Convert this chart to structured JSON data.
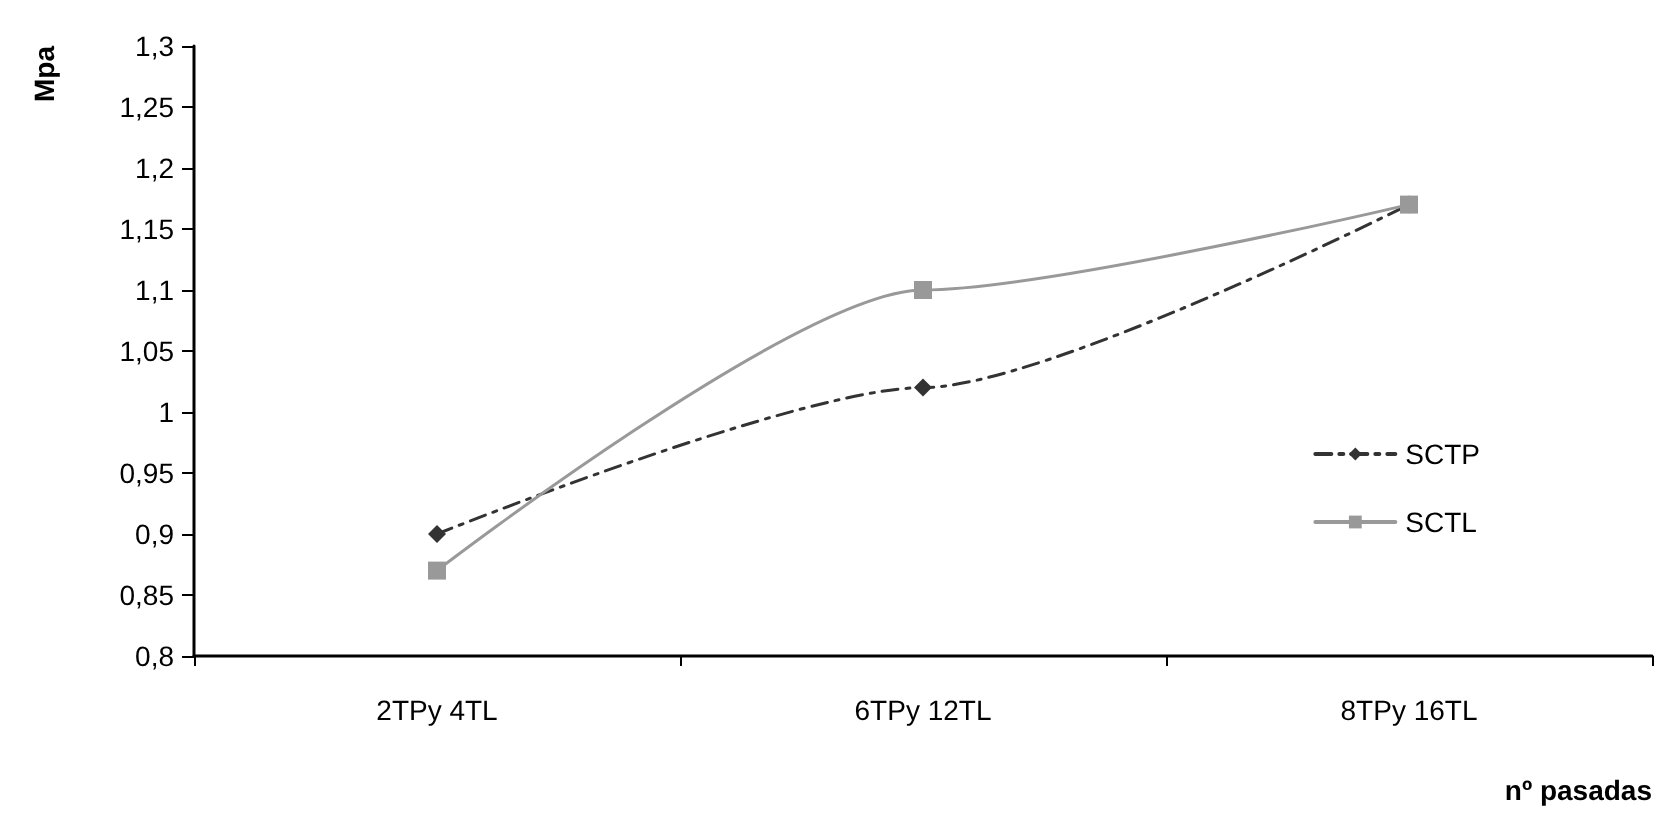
{
  "chart_data": {
    "type": "line",
    "xlabel": "nº pasadas",
    "ylabel": "Mpa",
    "categories": [
      "2TPy 4TL",
      "6TPy 12TL",
      "8TPy 16TL"
    ],
    "series": [
      {
        "name": "SCTP",
        "color": "#333333",
        "values": [
          0.9,
          1.02,
          1.17
        ],
        "marker": "diamond",
        "line_style": "dashed"
      },
      {
        "name": "SCTL",
        "color": "#999999",
        "values": [
          0.87,
          1.1,
          1.17
        ],
        "marker": "square",
        "line_style": "solid"
      }
    ],
    "ylim": [
      0.8,
      1.3
    ],
    "yticks": [
      {
        "value": 0.8,
        "label": "0,8"
      },
      {
        "value": 0.85,
        "label": "0,85"
      },
      {
        "value": 0.9,
        "label": "0,9"
      },
      {
        "value": 0.95,
        "label": "0,95"
      },
      {
        "value": 1,
        "label": "1"
      },
      {
        "value": 1.05,
        "label": "1,05"
      },
      {
        "value": 1.1,
        "label": "1,1"
      },
      {
        "value": 1.15,
        "label": "1,15"
      },
      {
        "value": 1.2,
        "label": "1,2"
      },
      {
        "value": 1.25,
        "label": "1,25"
      },
      {
        "value": 1.3,
        "label": "1,3"
      }
    ],
    "grid": false,
    "legend": "right"
  }
}
